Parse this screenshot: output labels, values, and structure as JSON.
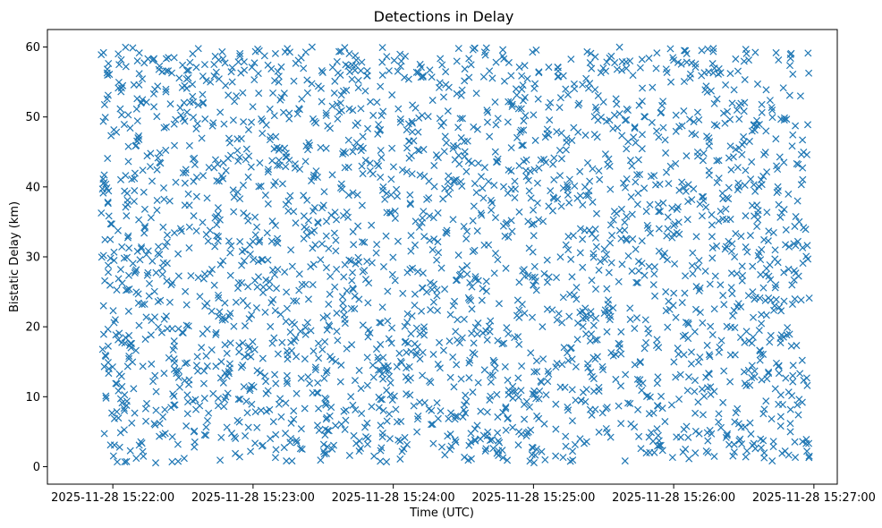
{
  "chart_data": {
    "type": "scatter",
    "title": "Detections in Delay",
    "xlabel": "Time (UTC)",
    "ylabel": "Bistatic Delay (km)",
    "marker": "x",
    "marker_color": "#1f77b4",
    "grid": false,
    "legend": "none",
    "xlim": [
      "2025-11-28 15:21:32",
      "2025-11-28 15:27:10"
    ],
    "ylim": [
      -2.5,
      62.5
    ],
    "x_ticks": [
      "2025-11-28 15:22:00",
      "2025-11-28 15:23:00",
      "2025-11-28 15:24:00",
      "2025-11-28 15:25:00",
      "2025-11-28 15:26:00",
      "2025-11-28 15:27:00"
    ],
    "y_ticks": [
      0,
      10,
      20,
      30,
      40,
      50,
      60
    ],
    "x_range": [
      "2025-11-28 15:21:55",
      "2025-11-28 15:26:58"
    ],
    "y_range": [
      0.5,
      60
    ],
    "points": [
      [
        "2025-11-28 15:21:56",
        59.2
      ],
      [
        "2025-11-28 15:21:58",
        53.1
      ],
      [
        "2025-11-28 15:21:57",
        40.4
      ],
      [
        "2025-11-28 15:21:59",
        29.8
      ],
      [
        "2025-11-28 15:21:56",
        23.0
      ],
      [
        "2025-11-28 15:21:58",
        14.9
      ],
      [
        "2025-11-28 15:21:57",
        10.1
      ],
      [
        "2025-11-28 15:21:59",
        3.1
      ],
      [
        "2025-11-28 15:22:05",
        39.4
      ],
      [
        "2025-11-28 15:22:08",
        17.6
      ],
      [
        "2025-11-28 15:22:12",
        52.0
      ],
      [
        "2025-11-28 15:22:10",
        1.2
      ],
      [
        "2025-11-28 15:22:20",
        43.5
      ],
      [
        "2025-11-28 15:22:25",
        26.0
      ],
      [
        "2025-11-28 15:22:33",
        57.8
      ],
      [
        "2025-11-28 15:22:40",
        33.2
      ],
      [
        "2025-11-28 15:22:48",
        13.4
      ],
      [
        "2025-11-28 15:22:55",
        46.9
      ],
      [
        "2025-11-28 15:23:02",
        59.7
      ],
      [
        "2025-11-28 15:23:10",
        25.5
      ],
      [
        "2025-11-28 15:23:18",
        42.7
      ],
      [
        "2025-11-28 15:23:28",
        8.3
      ],
      [
        "2025-11-28 15:23:35",
        55.1
      ],
      [
        "2025-11-28 15:23:45",
        29.9
      ],
      [
        "2025-11-28 15:23:55",
        50.2
      ],
      [
        "2025-11-28 15:24:05",
        17.8
      ],
      [
        "2025-11-28 15:24:12",
        57.1
      ],
      [
        "2025-11-28 15:24:20",
        14.1
      ],
      [
        "2025-11-28 15:24:28",
        44.5
      ],
      [
        "2025-11-28 15:24:36",
        33.7
      ],
      [
        "2025-11-28 15:24:45",
        1.6
      ],
      [
        "2025-11-28 15:24:52",
        40.8
      ],
      [
        "2025-11-28 15:25:00",
        50.3
      ],
      [
        "2025-11-28 15:25:08",
        22.4
      ],
      [
        "2025-11-28 15:25:18",
        9.5
      ],
      [
        "2025-11-28 15:25:28",
        28.1
      ],
      [
        "2025-11-28 15:25:38",
        57.9
      ],
      [
        "2025-11-28 15:25:48",
        21.0
      ],
      [
        "2025-11-28 15:25:57",
        33.0
      ],
      [
        "2025-11-28 15:26:05",
        2.5
      ],
      [
        "2025-11-28 15:26:12",
        59.5
      ],
      [
        "2025-11-28 15:26:20",
        26.0
      ],
      [
        "2025-11-28 15:26:28",
        49.7
      ],
      [
        "2025-11-28 15:26:36",
        35.3
      ],
      [
        "2025-11-28 15:26:44",
        43.0
      ],
      [
        "2025-11-28 15:26:50",
        58.4
      ],
      [
        "2025-11-28 15:26:55",
        15.2
      ],
      [
        "2025-11-28 15:26:57",
        44.6
      ],
      [
        "2025-11-28 15:26:58",
        24.1
      ],
      [
        "2025-11-28 15:26:58",
        1.5
      ]
    ]
  }
}
